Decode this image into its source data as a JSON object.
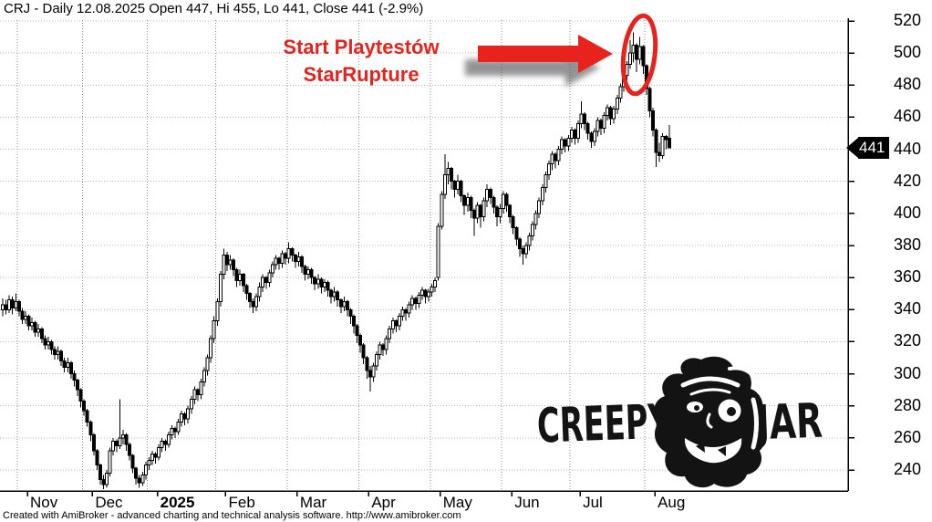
{
  "title": "CRJ - Daily 12.08.2025 Open 447, Hi 455, Lo 441, Close 441 (-2.9%)",
  "annotation": {
    "line1": "Start Playtestów",
    "line2": "StarRupture",
    "color": "#e8231d"
  },
  "price_label": "441",
  "footer": "Created with AmiBroker - advanced charting and technical analysis software. http://www.amibroker.com",
  "logo": {
    "left": "CREEPY",
    "right": "JAR"
  },
  "chart_data": {
    "type": "candlestick",
    "symbol": "CRJ",
    "interval": "Daily",
    "date_label": "12.08.2025",
    "last": {
      "open": 447,
      "high": 455,
      "low": 441,
      "close": 441,
      "change_pct": -2.9
    },
    "last_price": 441,
    "ylim": [
      228,
      524
    ],
    "y_ticks": [
      240,
      260,
      280,
      300,
      320,
      340,
      360,
      380,
      400,
      420,
      440,
      460,
      480,
      500,
      520
    ],
    "grid": "dotted",
    "legend_position": "none",
    "months": [
      {
        "label": "Nov",
        "start": 5
      },
      {
        "label": "Dec",
        "start": 25
      },
      {
        "label": "2025",
        "start": 45,
        "bold": true
      },
      {
        "label": "Feb",
        "start": 66
      },
      {
        "label": "Mar",
        "start": 88
      },
      {
        "label": "Apr",
        "start": 110
      },
      {
        "label": "May",
        "start": 132
      },
      {
        "label": "Jun",
        "start": 154
      },
      {
        "label": "Jul",
        "start": 175
      },
      {
        "label": "Aug",
        "start": 198
      }
    ],
    "candles": [
      [
        340,
        347,
        336,
        343
      ],
      [
        343,
        346,
        337,
        340
      ],
      [
        340,
        349,
        338,
        346
      ],
      [
        346,
        348,
        337,
        341
      ],
      [
        341,
        350,
        339,
        345
      ],
      [
        345,
        346,
        336,
        339
      ],
      [
        339,
        341,
        331,
        334
      ],
      [
        334,
        339,
        331,
        336
      ],
      [
        336,
        337,
        327,
        330
      ],
      [
        330,
        335,
        327,
        332
      ],
      [
        332,
        333,
        323,
        326
      ],
      [
        326,
        331,
        323,
        328
      ],
      [
        328,
        329,
        319,
        322
      ],
      [
        322,
        324,
        315,
        318
      ],
      [
        318,
        323,
        315,
        320
      ],
      [
        320,
        321,
        312,
        315
      ],
      [
        315,
        317,
        309,
        312
      ],
      [
        312,
        317,
        309,
        314
      ],
      [
        314,
        315,
        305,
        308
      ],
      [
        308,
        310,
        301,
        304
      ],
      [
        304,
        310,
        301,
        307
      ],
      [
        307,
        308,
        297,
        300
      ],
      [
        300,
        302,
        292,
        296
      ],
      [
        296,
        297,
        286,
        290
      ],
      [
        290,
        291,
        279,
        283
      ],
      [
        283,
        284,
        274,
        277
      ],
      [
        277,
        278,
        267,
        270
      ],
      [
        270,
        271,
        258,
        262
      ],
      [
        262,
        263,
        249,
        252
      ],
      [
        252,
        253,
        240,
        243
      ],
      [
        243,
        244,
        231,
        234
      ],
      [
        234,
        237,
        228,
        231
      ],
      [
        231,
        240,
        229,
        238
      ],
      [
        238,
        254,
        236,
        252
      ],
      [
        252,
        260,
        249,
        258
      ],
      [
        258,
        259,
        251,
        255
      ],
      [
        255,
        284,
        253,
        260
      ],
      [
        260,
        265,
        256,
        262
      ],
      [
        262,
        263,
        252,
        256
      ],
      [
        256,
        257,
        246,
        249
      ],
      [
        249,
        250,
        238,
        241
      ],
      [
        241,
        242,
        231,
        235
      ],
      [
        235,
        237,
        229,
        232
      ],
      [
        232,
        239,
        230,
        237
      ],
      [
        237,
        245,
        234,
        243
      ],
      [
        243,
        248,
        240,
        246
      ],
      [
        246,
        252,
        243,
        250
      ],
      [
        250,
        251,
        244,
        248
      ],
      [
        248,
        256,
        246,
        254
      ],
      [
        254,
        260,
        251,
        258
      ],
      [
        258,
        259,
        252,
        256
      ],
      [
        256,
        264,
        254,
        262
      ],
      [
        262,
        268,
        259,
        266
      ],
      [
        266,
        267,
        260,
        264
      ],
      [
        264,
        272,
        262,
        270
      ],
      [
        270,
        277,
        267,
        275
      ],
      [
        275,
        276,
        268,
        272
      ],
      [
        272,
        280,
        269,
        278
      ],
      [
        278,
        286,
        275,
        284
      ],
      [
        284,
        292,
        281,
        290
      ],
      [
        290,
        291,
        283,
        287
      ],
      [
        287,
        297,
        284,
        295
      ],
      [
        295,
        304,
        292,
        302
      ],
      [
        302,
        312,
        299,
        310
      ],
      [
        310,
        324,
        307,
        322
      ],
      [
        322,
        336,
        319,
        333
      ],
      [
        333,
        347,
        330,
        345
      ],
      [
        345,
        364,
        342,
        362
      ],
      [
        362,
        378,
        359,
        374
      ],
      [
        374,
        376,
        364,
        368
      ],
      [
        368,
        374,
        365,
        371
      ],
      [
        371,
        372,
        361,
        365
      ],
      [
        365,
        366,
        354,
        358
      ],
      [
        358,
        365,
        355,
        362
      ],
      [
        362,
        363,
        351,
        355
      ],
      [
        355,
        356,
        346,
        350
      ],
      [
        350,
        351,
        341,
        345
      ],
      [
        345,
        347,
        338,
        342
      ],
      [
        342,
        350,
        339,
        348
      ],
      [
        348,
        357,
        345,
        354
      ],
      [
        354,
        362,
        351,
        360
      ],
      [
        360,
        361,
        353,
        357
      ],
      [
        357,
        365,
        354,
        363
      ],
      [
        363,
        370,
        360,
        368
      ],
      [
        368,
        374,
        365,
        372
      ],
      [
        372,
        373,
        365,
        369
      ],
      [
        369,
        377,
        366,
        375
      ],
      [
        375,
        376,
        368,
        372
      ],
      [
        372,
        382,
        369,
        378
      ],
      [
        378,
        379,
        370,
        374
      ],
      [
        374,
        375,
        366,
        370
      ],
      [
        370,
        376,
        367,
        373
      ],
      [
        373,
        374,
        363,
        367
      ],
      [
        367,
        368,
        358,
        362
      ],
      [
        362,
        367,
        359,
        365
      ],
      [
        365,
        366,
        356,
        360
      ],
      [
        360,
        361,
        352,
        356
      ],
      [
        356,
        362,
        353,
        359
      ],
      [
        359,
        360,
        350,
        354
      ],
      [
        354,
        359,
        351,
        357
      ],
      [
        357,
        358,
        348,
        352
      ],
      [
        352,
        353,
        344,
        348
      ],
      [
        348,
        354,
        345,
        351
      ],
      [
        351,
        352,
        342,
        346
      ],
      [
        346,
        347,
        338,
        342
      ],
      [
        342,
        348,
        339,
        345
      ],
      [
        345,
        346,
        336,
        340
      ],
      [
        340,
        341,
        331,
        336
      ],
      [
        336,
        337,
        325,
        330
      ],
      [
        330,
        331,
        319,
        324
      ],
      [
        324,
        325,
        313,
        318
      ],
      [
        318,
        319,
        306,
        310
      ],
      [
        310,
        311,
        297,
        302
      ],
      [
        302,
        305,
        289,
        298
      ],
      [
        298,
        307,
        295,
        305
      ],
      [
        305,
        314,
        302,
        312
      ],
      [
        312,
        320,
        309,
        318
      ],
      [
        318,
        319,
        311,
        315
      ],
      [
        315,
        324,
        312,
        322
      ],
      [
        322,
        330,
        319,
        328
      ],
      [
        328,
        335,
        325,
        333
      ],
      [
        333,
        334,
        326,
        330
      ],
      [
        330,
        338,
        327,
        336
      ],
      [
        336,
        342,
        333,
        340
      ],
      [
        340,
        341,
        333,
        338
      ],
      [
        338,
        345,
        335,
        343
      ],
      [
        343,
        349,
        340,
        347
      ],
      [
        347,
        348,
        340,
        344
      ],
      [
        344,
        351,
        341,
        349
      ],
      [
        349,
        354,
        346,
        352
      ],
      [
        352,
        353,
        344,
        348
      ],
      [
        348,
        353,
        345,
        351
      ],
      [
        351,
        356,
        348,
        354
      ],
      [
        354,
        360,
        351,
        358
      ],
      [
        360,
        394,
        358,
        392
      ],
      [
        392,
        414,
        390,
        412
      ],
      [
        412,
        437,
        409,
        424
      ],
      [
        424,
        432,
        418,
        428
      ],
      [
        428,
        429,
        415,
        420
      ],
      [
        420,
        421,
        410,
        415
      ],
      [
        415,
        424,
        412,
        420
      ],
      [
        420,
        421,
        407,
        411
      ],
      [
        411,
        412,
        399,
        405
      ],
      [
        405,
        413,
        401,
        410
      ],
      [
        410,
        411,
        397,
        402
      ],
      [
        402,
        403,
        386,
        397
      ],
      [
        397,
        407,
        394,
        405
      ],
      [
        405,
        406,
        391,
        398
      ],
      [
        398,
        410,
        395,
        408
      ],
      [
        408,
        418,
        404,
        415
      ],
      [
        415,
        416,
        406,
        410
      ],
      [
        410,
        411,
        400,
        404
      ],
      [
        404,
        405,
        392,
        398
      ],
      [
        398,
        406,
        394,
        403
      ],
      [
        403,
        414,
        400,
        412
      ],
      [
        412,
        413,
        401,
        405
      ],
      [
        405,
        406,
        394,
        398
      ],
      [
        398,
        399,
        387,
        391
      ],
      [
        391,
        392,
        380,
        384
      ],
      [
        384,
        385,
        373,
        378
      ],
      [
        378,
        380,
        368,
        375
      ],
      [
        375,
        382,
        372,
        380
      ],
      [
        380,
        388,
        377,
        386
      ],
      [
        386,
        395,
        383,
        393
      ],
      [
        393,
        402,
        390,
        400
      ],
      [
        400,
        410,
        397,
        408
      ],
      [
        408,
        418,
        405,
        416
      ],
      [
        416,
        426,
        413,
        424
      ],
      [
        424,
        433,
        421,
        431
      ],
      [
        431,
        439,
        427,
        437
      ],
      [
        437,
        438,
        428,
        433
      ],
      [
        433,
        442,
        430,
        440
      ],
      [
        440,
        448,
        437,
        446
      ],
      [
        446,
        447,
        438,
        442
      ],
      [
        442,
        449,
        439,
        447
      ],
      [
        447,
        454,
        444,
        452
      ],
      [
        452,
        453,
        443,
        447
      ],
      [
        447,
        458,
        444,
        456
      ],
      [
        456,
        470,
        453,
        462
      ],
      [
        462,
        463,
        452,
        456
      ],
      [
        456,
        457,
        446,
        450
      ],
      [
        450,
        451,
        441,
        445
      ],
      [
        445,
        453,
        442,
        451
      ],
      [
        451,
        460,
        448,
        458
      ],
      [
        458,
        459,
        449,
        453
      ],
      [
        453,
        463,
        450,
        461
      ],
      [
        461,
        468,
        458,
        466
      ],
      [
        466,
        467,
        455,
        459
      ],
      [
        459,
        467,
        456,
        465
      ],
      [
        465,
        474,
        462,
        472
      ],
      [
        472,
        481,
        469,
        479
      ],
      [
        479,
        488,
        476,
        486
      ],
      [
        486,
        495,
        483,
        493
      ],
      [
        493,
        508,
        490,
        500
      ],
      [
        500,
        513,
        494,
        505
      ],
      [
        505,
        506,
        488,
        496
      ],
      [
        496,
        510,
        493,
        504
      ],
      [
        504,
        505,
        487,
        492
      ],
      [
        492,
        493,
        474,
        478
      ],
      [
        478,
        479,
        460,
        464
      ],
      [
        464,
        466,
        448,
        452
      ],
      [
        452,
        453,
        429,
        438
      ],
      [
        438,
        444,
        432,
        436
      ],
      [
        436,
        450,
        434,
        448
      ],
      [
        448,
        449,
        440,
        446
      ],
      [
        447,
        455,
        441,
        441
      ]
    ]
  }
}
